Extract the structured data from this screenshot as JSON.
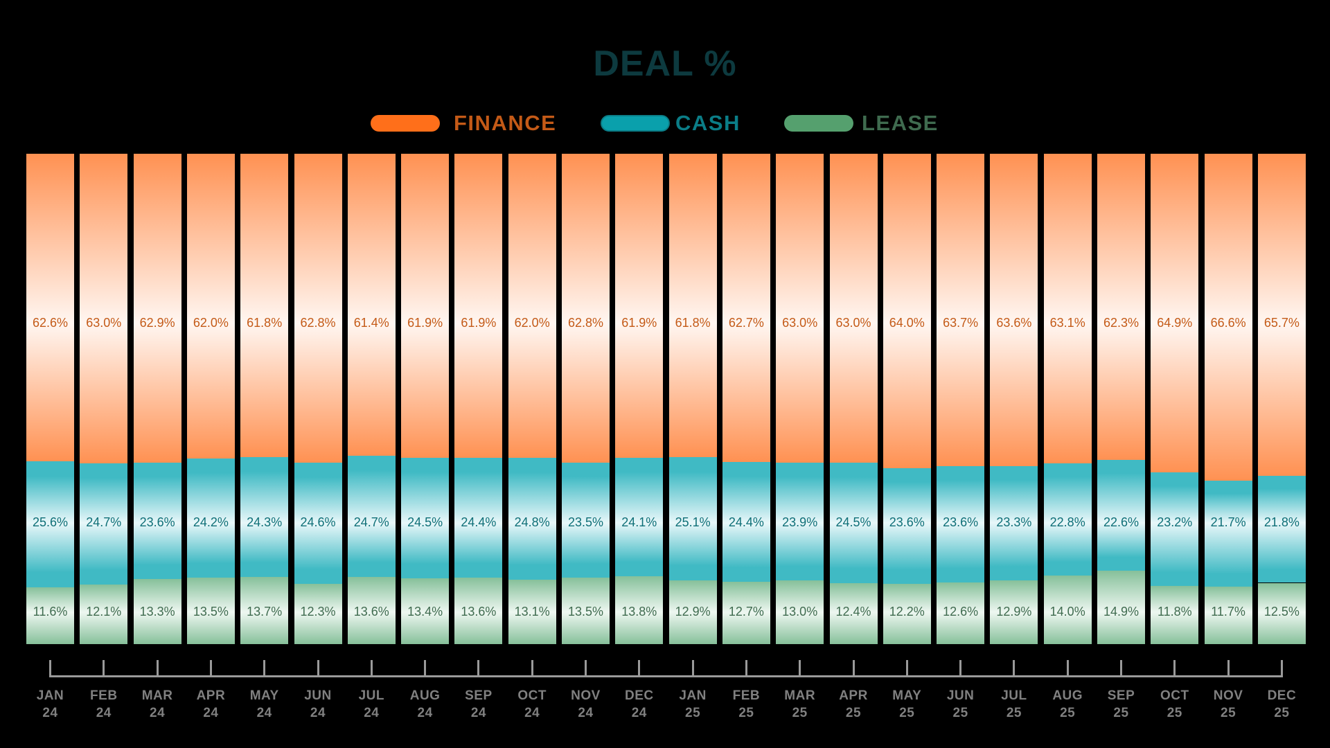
{
  "title": "DEAL %",
  "legend": [
    {
      "label": "FINANCE",
      "pill_color": "#ff6f1a",
      "text_color": "#c45a17"
    },
    {
      "label": "CASH",
      "pill_color": "#0aa0ac",
      "text_color": "#0b7d87"
    },
    {
      "label": "LEASE",
      "pill_color": "#55a06e",
      "text_color": "#3f6b4f"
    }
  ],
  "colors": {
    "finance": "#ff9152",
    "finance_light": "#fff6f1",
    "finance_text": "#c45a17",
    "cash": "#40bac4",
    "cash_light": "#e8f7f9",
    "cash_text": "#0e6f77",
    "lease": "#86c09a",
    "lease_light": "#eef7f1",
    "lease_text": "#3f6b4f",
    "axis": "#9a9a9a",
    "axis_label": "#808080",
    "title": "#0d3a3f"
  },
  "x_labels": [
    [
      "JAN",
      "24"
    ],
    [
      "FEB",
      "24"
    ],
    [
      "MAR",
      "24"
    ],
    [
      "APR",
      "24"
    ],
    [
      "MAY",
      "24"
    ],
    [
      "JUN",
      "24"
    ],
    [
      "JUL",
      "24"
    ],
    [
      "AUG",
      "24"
    ],
    [
      "SEP",
      "24"
    ],
    [
      "OCT",
      "24"
    ],
    [
      "NOV",
      "24"
    ],
    [
      "DEC",
      "24"
    ],
    [
      "JAN",
      "25"
    ],
    [
      "FEB",
      "25"
    ],
    [
      "MAR",
      "25"
    ],
    [
      "APR",
      "25"
    ],
    [
      "MAY",
      "25"
    ],
    [
      "JUN",
      "25"
    ],
    [
      "JUL",
      "25"
    ],
    [
      "AUG",
      "25"
    ],
    [
      "SEP",
      "25"
    ],
    [
      "OCT",
      "25"
    ],
    [
      "NOV",
      "25"
    ],
    [
      "DEC",
      "25"
    ]
  ],
  "chart_data": {
    "type": "bar",
    "stacked": true,
    "normalized": true,
    "title": "DEAL %",
    "xlabel": "",
    "ylabel": "",
    "ylim": [
      0,
      100
    ],
    "grid": false,
    "legend_position": "top",
    "categories": [
      "JAN 24",
      "FEB 24",
      "MAR 24",
      "APR 24",
      "MAY 24",
      "JUN 24",
      "JUL 24",
      "AUG 24",
      "SEP 24",
      "OCT 24",
      "NOV 24",
      "DEC 24",
      "JAN 25",
      "FEB 25",
      "MAR 25",
      "APR 25",
      "MAY 25",
      "JUN 25",
      "JUL 25",
      "AUG 25",
      "SEP 25",
      "OCT 25",
      "NOV 25",
      "DEC 25"
    ],
    "series": [
      {
        "name": "FINANCE",
        "values": [
          62.6,
          63.0,
          62.9,
          62.0,
          61.8,
          62.8,
          61.4,
          61.9,
          61.9,
          62.0,
          62.8,
          61.9,
          61.8,
          62.7,
          63.0,
          63.0,
          64.0,
          63.7,
          63.6,
          63.1,
          62.3,
          64.9,
          66.6,
          65.7
        ]
      },
      {
        "name": "CASH",
        "values": [
          25.6,
          24.7,
          23.6,
          24.2,
          24.3,
          24.6,
          24.7,
          24.5,
          24.4,
          24.8,
          23.5,
          24.1,
          25.1,
          24.4,
          23.9,
          24.5,
          23.6,
          23.6,
          23.3,
          22.8,
          22.6,
          23.2,
          21.7,
          21.8
        ]
      },
      {
        "name": "LEASE",
        "values": [
          11.6,
          12.1,
          13.3,
          13.5,
          13.7,
          12.3,
          13.6,
          13.4,
          13.6,
          13.1,
          13.5,
          13.8,
          12.9,
          12.7,
          13.0,
          12.4,
          12.2,
          12.6,
          12.9,
          14.0,
          14.9,
          11.8,
          11.7,
          12.5
        ]
      }
    ]
  }
}
